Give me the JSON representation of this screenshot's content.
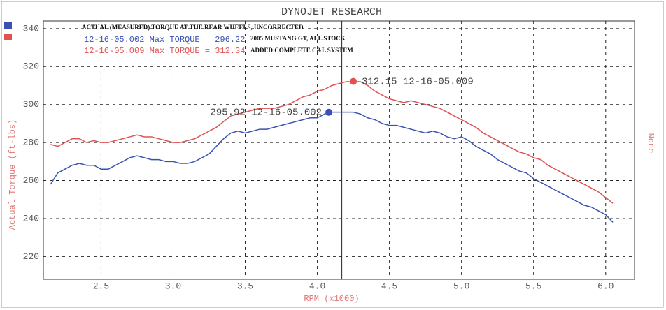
{
  "chart_data": {
    "type": "line",
    "title": "DYNOJET RESEARCH",
    "x_label": "RPM (x1000)",
    "y_label": "Actual Torque (ft-lbs)",
    "y2_label": "None",
    "annotations": [
      "ACTUAL (MEASURED) TORQUE AT THE REAR WHEELS, UNCORRECTED",
      "2005 MUSTANG GT, ALL STOCK",
      "ADDED COMPLETE C&L SYSTEM"
    ],
    "x": [
      2.15,
      2.2,
      2.25,
      2.3,
      2.35,
      2.4,
      2.45,
      2.5,
      2.55,
      2.6,
      2.65,
      2.7,
      2.75,
      2.8,
      2.85,
      2.9,
      2.95,
      3,
      3.05,
      3.1,
      3.15,
      3.2,
      3.25,
      3.3,
      3.35,
      3.4,
      3.45,
      3.5,
      3.55,
      3.6,
      3.65,
      3.7,
      3.75,
      3.8,
      3.85,
      3.9,
      3.95,
      4,
      4.05,
      4.1,
      4.15,
      4.2,
      4.25,
      4.3,
      4.35,
      4.4,
      4.45,
      4.5,
      4.55,
      4.6,
      4.65,
      4.7,
      4.75,
      4.8,
      4.85,
      4.9,
      4.95,
      5,
      5.05,
      5.1,
      5.15,
      5.2,
      5.25,
      5.3,
      5.35,
      5.4,
      5.45,
      5.5,
      5.55,
      5.6,
      5.65,
      5.7,
      5.75,
      5.8,
      5.85,
      5.9,
      5.95,
      6,
      6.05
    ],
    "series": [
      {
        "name": "12-16-05.002 Max TORQUE = 296.22",
        "color": "#3a52b4",
        "values": [
          258,
          264,
          266,
          268,
          269,
          268,
          268,
          266,
          266,
          268,
          270,
          272,
          273,
          272,
          271,
          271,
          270,
          270,
          269,
          269,
          270,
          272,
          274,
          278,
          282,
          285,
          286,
          285,
          286,
          287,
          287,
          288,
          289,
          290,
          291,
          292,
          293,
          293,
          295,
          296,
          296,
          296,
          296,
          295,
          293,
          292,
          290,
          289,
          289,
          288,
          287,
          286,
          285,
          286,
          285,
          283,
          282,
          283,
          281,
          278,
          276,
          274,
          271,
          269,
          267,
          265,
          264,
          261,
          259,
          257,
          255,
          253,
          251,
          249,
          247,
          246,
          244,
          242,
          238
        ]
      },
      {
        "name": "12-16-05.009 Max TORQUE = 312.34",
        "color": "#e05252",
        "values": [
          279,
          278,
          280,
          282,
          282,
          280,
          281,
          280,
          280,
          281,
          282,
          283,
          284,
          283,
          283,
          282,
          281,
          280,
          280,
          281,
          282,
          284,
          286,
          288,
          291,
          294,
          295,
          296,
          297,
          298,
          298,
          298,
          299,
          300,
          302,
          304,
          305,
          307,
          308,
          310,
          311,
          312,
          312,
          312,
          310,
          307,
          305,
          303,
          302,
          301,
          302,
          301,
          300,
          299,
          298,
          296,
          294,
          292,
          290,
          288,
          285,
          283,
          281,
          279,
          277,
          275,
          274,
          272,
          271,
          268,
          266,
          264,
          262,
          260,
          258,
          256,
          254,
          251,
          248
        ]
      }
    ],
    "point_labels": [
      {
        "x": 4.25,
        "y": 312.15,
        "label": "312.15 12-16-05.009",
        "color": "#e05252"
      },
      {
        "x": 4.08,
        "y": 295.92,
        "label": "295.92 12-16-05.002",
        "color": "#3a52b4"
      }
    ],
    "cursor_x": 4.17,
    "xlim": [
      2.1,
      6.2
    ],
    "ylim": [
      208,
      344
    ],
    "xticks": [
      2.5,
      {
        "value": 3,
        "label": "3.0"
      },
      3.5,
      {
        "value": 4,
        "label": "4.0"
      },
      4.5,
      {
        "value": 5,
        "label": "5.0"
      },
      5.5,
      {
        "value": 6,
        "label": "6.0"
      }
    ],
    "yticks": [
      220,
      240,
      260,
      280,
      300,
      320,
      340
    ],
    "grid": true
  }
}
